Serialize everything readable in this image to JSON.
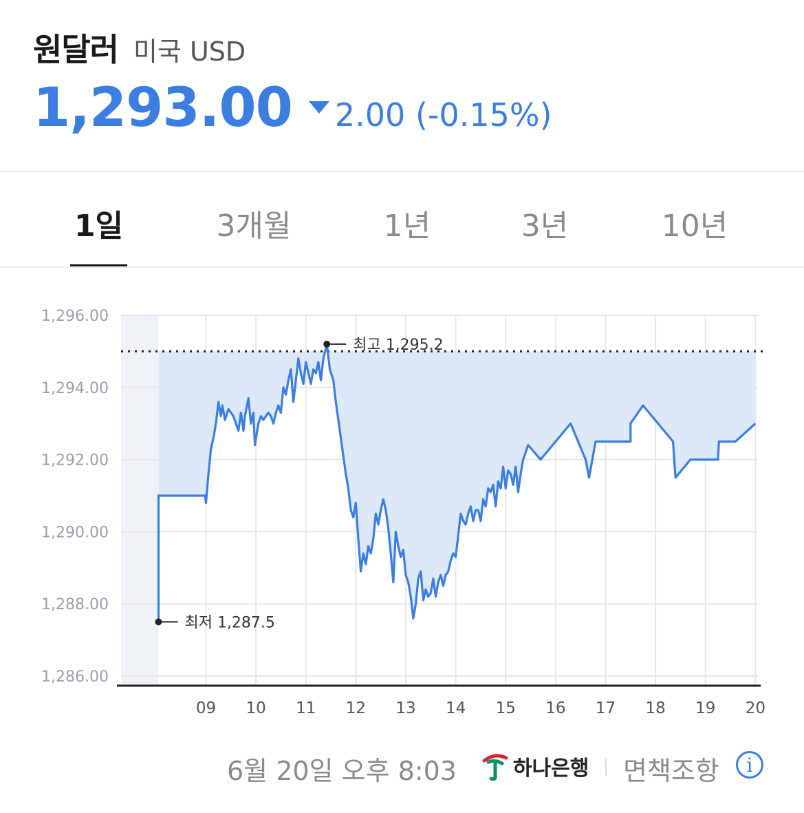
{
  "header": {
    "title": "원달러",
    "subtitle": "미국 USD",
    "price": "1,293.00",
    "change": "2.00 (-0.15%)",
    "direction": "down",
    "accent_color": "#3b7ee0"
  },
  "tabs": [
    {
      "label": "1일",
      "active": true
    },
    {
      "label": "3개월",
      "active": false
    },
    {
      "label": "1년",
      "active": false
    },
    {
      "label": "3년",
      "active": false
    },
    {
      "label": "10년",
      "active": false
    }
  ],
  "footer": {
    "timestamp": "6월 20일 오후 8:03",
    "bank_name": "하나은행",
    "disclaimer": "면책조항",
    "info_icon": "info-icon"
  },
  "chart_data": {
    "type": "line",
    "ylim": [
      1286,
      1296
    ],
    "yticks": [
      "1,296.00",
      "1,294.00",
      "1,292.00",
      "1,290.00",
      "1,288.00",
      "1,286.00"
    ],
    "xlim": [
      7.3,
      20.05
    ],
    "xticks": [
      {
        "label": "09",
        "x": 9
      },
      {
        "label": "10",
        "x": 10
      },
      {
        "label": "11",
        "x": 11
      },
      {
        "label": "12",
        "x": 12
      },
      {
        "label": "13",
        "x": 13
      },
      {
        "label": "14",
        "x": 14
      },
      {
        "label": "15",
        "x": 15
      },
      {
        "label": "16",
        "x": 16
      },
      {
        "label": "17",
        "x": 17
      },
      {
        "label": "18",
        "x": 18
      },
      {
        "label": "19",
        "x": 19
      },
      {
        "label": "20",
        "x": 20
      }
    ],
    "night_marker": "moon-icon",
    "night_shade": [
      7.3,
      8.05
    ],
    "reference_line": 1295.0,
    "high": {
      "label": "최고 1,295.2",
      "x": 11.42,
      "y": 1295.2
    },
    "low": {
      "label": "최저 1,287.5",
      "x": 8.05,
      "y": 1287.5
    },
    "grid": true,
    "line_color": "#3b7ee0",
    "fill_color": "#dde9f8",
    "series": [
      {
        "x": [
          8.05,
          8.05,
          8.6,
          8.98,
          9.0,
          9.05,
          9.1,
          9.15,
          9.2,
          9.25,
          9.3,
          9.33,
          9.38,
          9.45,
          9.55,
          9.6,
          9.65,
          9.7,
          9.75,
          9.78,
          9.85,
          9.9,
          9.95,
          9.98,
          10.05,
          10.1,
          10.15,
          10.2,
          10.25,
          10.3,
          10.35,
          10.4,
          10.45,
          10.5,
          10.55,
          10.6,
          10.65,
          10.7,
          10.75,
          10.8,
          10.85,
          10.9,
          10.95,
          11.0,
          11.05,
          11.1,
          11.15,
          11.2,
          11.25,
          11.3,
          11.35,
          11.42,
          11.48,
          11.55,
          11.6,
          11.65,
          11.7,
          11.75,
          11.8,
          11.85,
          11.9,
          11.95,
          12.0,
          12.05,
          12.1,
          12.15,
          12.2,
          12.25,
          12.3,
          12.35,
          12.4,
          12.45,
          12.5,
          12.55,
          12.6,
          12.65,
          12.7,
          12.75,
          12.8,
          12.85,
          12.9,
          12.95,
          13.0,
          13.05,
          13.1,
          13.15,
          13.2,
          13.25,
          13.3,
          13.35,
          13.4,
          13.45,
          13.5,
          13.55,
          13.6,
          13.65,
          13.7,
          13.75,
          13.8,
          13.85,
          13.9,
          13.95,
          14.0,
          14.05,
          14.1,
          14.15,
          14.2,
          14.25,
          14.3,
          14.35,
          14.4,
          14.45,
          14.5,
          14.55,
          14.6,
          14.65,
          14.7,
          14.75,
          14.8,
          14.85,
          14.9,
          14.95,
          15.0,
          15.05,
          15.1,
          15.15,
          15.2,
          15.25,
          15.3,
          15.35,
          15.45,
          15.7,
          16.0,
          16.3,
          16.6,
          16.67,
          16.8,
          17.0,
          17.2,
          17.5,
          17.5,
          17.75,
          18.35,
          18.4,
          18.7,
          19.0,
          19.25,
          19.27,
          19.6,
          20.0
        ],
        "y": [
          1287.5,
          1291.0,
          1291.0,
          1291.0,
          1290.8,
          1291.6,
          1292.3,
          1292.6,
          1293.0,
          1293.6,
          1293.2,
          1293.5,
          1293.1,
          1293.4,
          1293.2,
          1293.0,
          1292.8,
          1293.3,
          1292.8,
          1293.2,
          1293.7,
          1293.0,
          1293.3,
          1292.4,
          1293.0,
          1293.2,
          1293.1,
          1293.2,
          1293.3,
          1293.2,
          1293.0,
          1293.3,
          1293.5,
          1293.3,
          1294.0,
          1293.8,
          1294.2,
          1294.5,
          1293.6,
          1294.2,
          1294.8,
          1294.4,
          1294.1,
          1294.7,
          1294.4,
          1294.1,
          1294.5,
          1294.4,
          1294.7,
          1294.2,
          1294.8,
          1295.2,
          1294.5,
          1294.2,
          1293.6,
          1293.1,
          1292.6,
          1292.1,
          1291.6,
          1291.2,
          1290.6,
          1290.4,
          1290.8,
          1289.8,
          1288.9,
          1289.4,
          1289.1,
          1289.6,
          1289.4,
          1289.8,
          1290.5,
          1290.2,
          1290.6,
          1290.9,
          1290.6,
          1290.1,
          1289.4,
          1288.6,
          1290.0,
          1289.6,
          1289.3,
          1289.5,
          1288.8,
          1288.6,
          1288.2,
          1287.6,
          1288.0,
          1288.7,
          1288.9,
          1288.1,
          1288.4,
          1288.2,
          1288.3,
          1288.7,
          1288.2,
          1288.6,
          1288.8,
          1288.5,
          1288.8,
          1288.9,
          1289.2,
          1289.4,
          1289.3,
          1289.9,
          1290.5,
          1290.3,
          1290.2,
          1290.5,
          1290.7,
          1290.3,
          1290.6,
          1290.6,
          1290.3,
          1290.9,
          1290.7,
          1291.2,
          1291.1,
          1291.3,
          1290.7,
          1291.4,
          1291.2,
          1291.8,
          1291.2,
          1291.7,
          1291.6,
          1291.3,
          1291.8,
          1291.1,
          1291.6,
          1292.0,
          1292.4,
          1292.0,
          1292.5,
          1293.0,
          1292.0,
          1291.5,
          1292.5,
          1292.5,
          1292.5,
          1292.5,
          1293.0,
          1293.5,
          1292.5,
          1291.5,
          1292.0,
          1292.0,
          1292.0,
          1292.5,
          1292.5,
          1293.0
        ]
      }
    ]
  }
}
